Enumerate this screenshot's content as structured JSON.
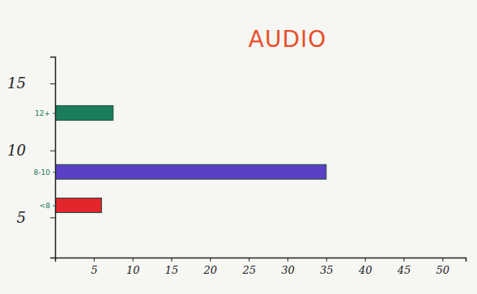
{
  "chart_data": {
    "type": "bar",
    "title": "AUDIO",
    "orientation": "horizontal",
    "categories": [
      "<8",
      "8-10",
      "12+"
    ],
    "positions": [
      5.9,
      8.4,
      12.8
    ],
    "values": [
      6,
      35,
      7.5
    ],
    "colors": [
      "#e3262b",
      "#5b3fc4",
      "#1b7d5e"
    ],
    "xlim": [
      0,
      53
    ],
    "xticks": [
      5,
      10,
      15,
      20,
      25,
      30,
      35,
      40,
      45,
      50
    ],
    "ylim": [
      2,
      17
    ],
    "yticks": [
      5,
      10,
      15
    ]
  }
}
